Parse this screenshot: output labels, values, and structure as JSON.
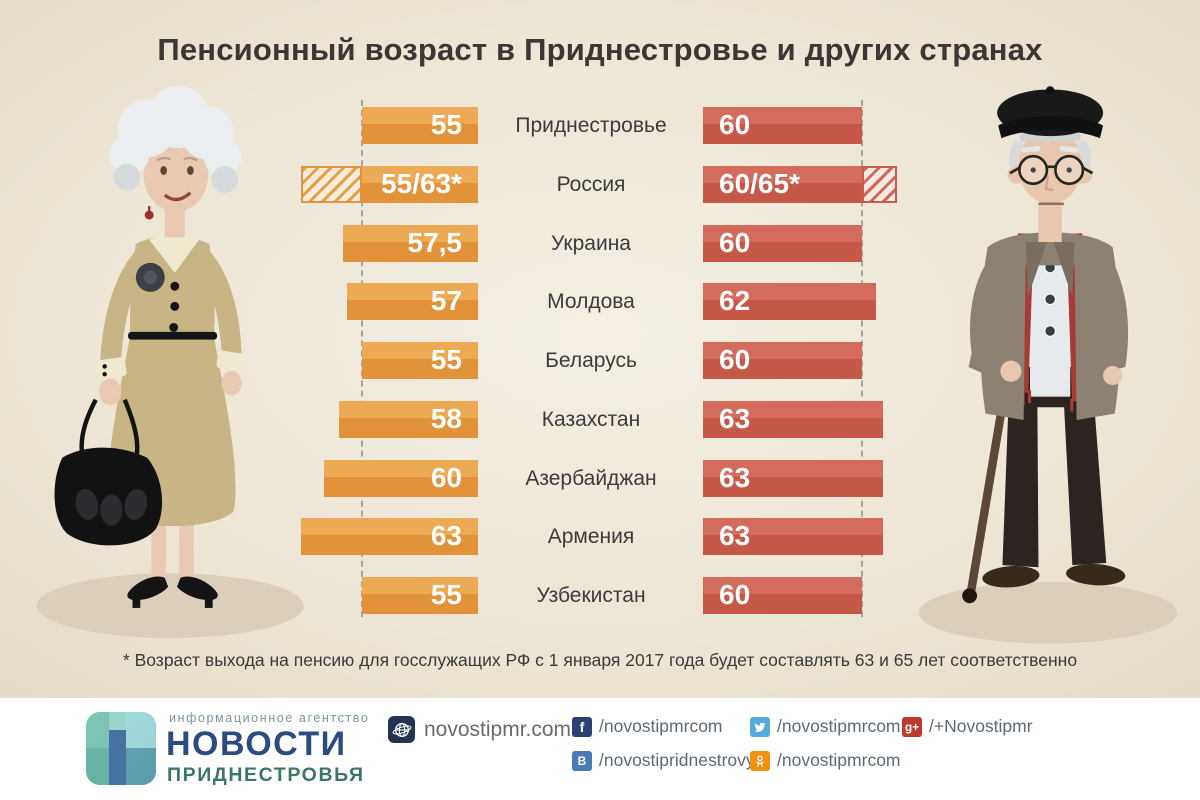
{
  "title": "Пенсионный возраст в Приднестровье и других странах",
  "footnote": "* Возраст выхода на пенсию для госслужащих РФ с 1 января 2017 года будет составлять 63 и 65 лет соответственно",
  "colors": {
    "background_center": "#f4efe4",
    "background_edge": "#e2d7c6",
    "women_bar_top": "#ecaa55",
    "women_bar_bottom": "#e29238",
    "men_bar_top": "#d46c5e",
    "men_bar_bottom": "#c65848",
    "title_text": "#3b3734",
    "country_text": "#3b3b3b",
    "bar_value_text": "#ffffff",
    "footer_background": "#ffffff"
  },
  "chart_data": {
    "type": "bar",
    "orientation": "horizontal mirrored pyramid: left orange bars = pension age for women, right red bars = pension age for men; hatched extensions = future increase (see footnote)",
    "title": "Пенсионный возраст в Приднестровье и других странах",
    "legend": [
      "женщины (оранжевые бары слева)",
      "мужчины (красные бары справа)"
    ],
    "baseline_markers": {
      "women_dashed_line_at": 55,
      "men_dashed_line_at": 60
    },
    "value_range_women": [
      55,
      63
    ],
    "value_range_men": [
      60,
      65
    ],
    "rows": [
      {
        "country": "Приднестровье",
        "women": {
          "label": "55",
          "value": 55
        },
        "men": {
          "label": "60",
          "value": 60
        }
      },
      {
        "country": "Россия",
        "women": {
          "label": "55/63*",
          "value": 55,
          "future_value": 63
        },
        "men": {
          "label": "60/65*",
          "value": 60,
          "future_value": 65
        }
      },
      {
        "country": "Украина",
        "women": {
          "label": "57,5",
          "value": 57.5
        },
        "men": {
          "label": "60",
          "value": 60
        }
      },
      {
        "country": "Молдова",
        "women": {
          "label": "57",
          "value": 57
        },
        "men": {
          "label": "62",
          "value": 62
        }
      },
      {
        "country": "Беларусь",
        "women": {
          "label": "55",
          "value": 55
        },
        "men": {
          "label": "60",
          "value": 60
        }
      },
      {
        "country": "Казахстан",
        "women": {
          "label": "58",
          "value": 58
        },
        "men": {
          "label": "63",
          "value": 63
        }
      },
      {
        "country": "Азербайджан",
        "women": {
          "label": "60",
          "value": 60
        },
        "men": {
          "label": "63",
          "value": 63
        }
      },
      {
        "country": "Армения",
        "women": {
          "label": "63",
          "value": 63
        },
        "men": {
          "label": "63",
          "value": 63
        }
      },
      {
        "country": "Узбекистан",
        "women": {
          "label": "55",
          "value": 55
        },
        "men": {
          "label": "60",
          "value": 60
        }
      }
    ]
  },
  "footer": {
    "agency_tagline": "информационное агентство",
    "brand_name_line1": "НОВОСТИ",
    "brand_name_line2": "ПРИДНЕСТРОВЬЯ",
    "website": "novostipmr.com",
    "socials": [
      {
        "network": "facebook",
        "handle": "/novostipmrcom"
      },
      {
        "network": "vk",
        "handle": "/novostipridnestrovya"
      },
      {
        "network": "twitter",
        "handle": "/novostipmrcom"
      },
      {
        "network": "odnoklassniki",
        "handle": "/novostipmrcom"
      },
      {
        "network": "google-plus",
        "handle": "/+Novostipmr"
      }
    ]
  }
}
